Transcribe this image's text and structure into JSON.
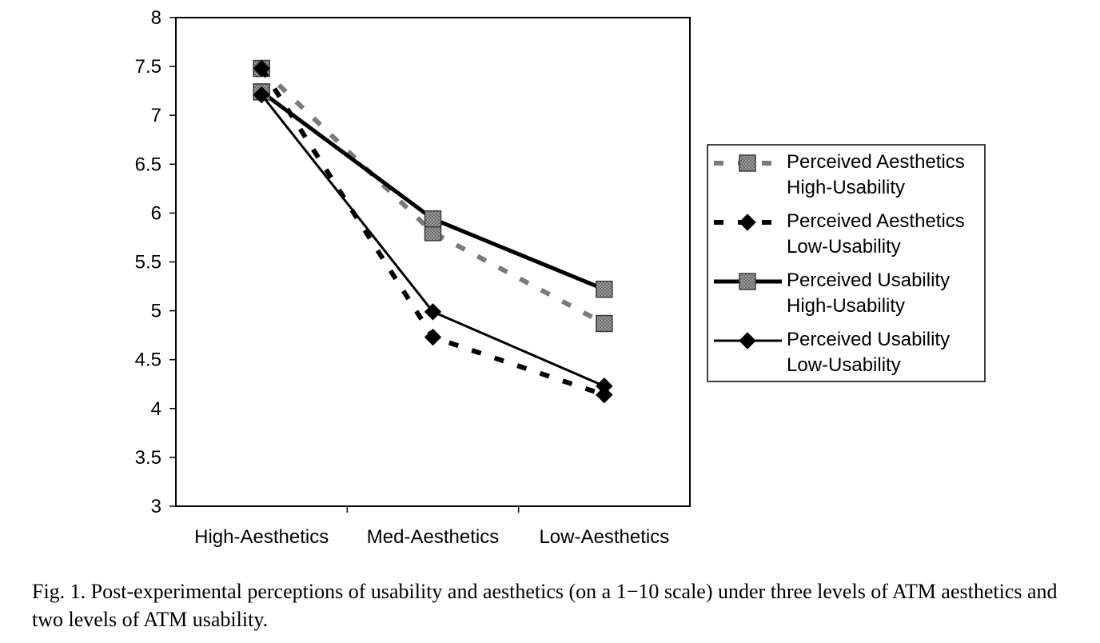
{
  "chart_data": {
    "type": "line",
    "categories": [
      "High-Aesthetics",
      "Med-Aesthetics",
      "Low-Aesthetics"
    ],
    "ylim": [
      3,
      8
    ],
    "y_ticks": [
      "3",
      "3.5",
      "4",
      "4.5",
      "5",
      "5.5",
      "6",
      "6.5",
      "7",
      "7.5",
      "8"
    ],
    "grid": false,
    "legend_position": "right",
    "series": [
      {
        "legend_line1": "Perceived Aesthetics",
        "legend_line2": "High-Usability",
        "values": [
          7.48,
          5.8,
          4.87
        ],
        "line": "dashed",
        "line_color": "#7a7a7a",
        "marker": "square"
      },
      {
        "legend_line1": "Perceived Aesthetics",
        "legend_line2": "Low-Usability",
        "values": [
          7.48,
          4.73,
          4.14
        ],
        "line": "dashed",
        "line_color": "#000000",
        "marker": "diamond"
      },
      {
        "legend_line1": "Perceived Usability",
        "legend_line2": "High-Usability",
        "values": [
          7.24,
          5.94,
          5.22
        ],
        "line": "solid-thick",
        "line_color": "#000000",
        "marker": "square"
      },
      {
        "legend_line1": "Perceived Usability",
        "legend_line2": "Low-Usability",
        "values": [
          7.21,
          4.99,
          4.23
        ],
        "line": "solid",
        "line_color": "#000000",
        "marker": "diamond"
      }
    ]
  },
  "caption": "Fig. 1. Post-experimental perceptions of usability and aesthetics (on a 1−10 scale) under three levels of ATM aesthetics and two levels of ATM usability."
}
